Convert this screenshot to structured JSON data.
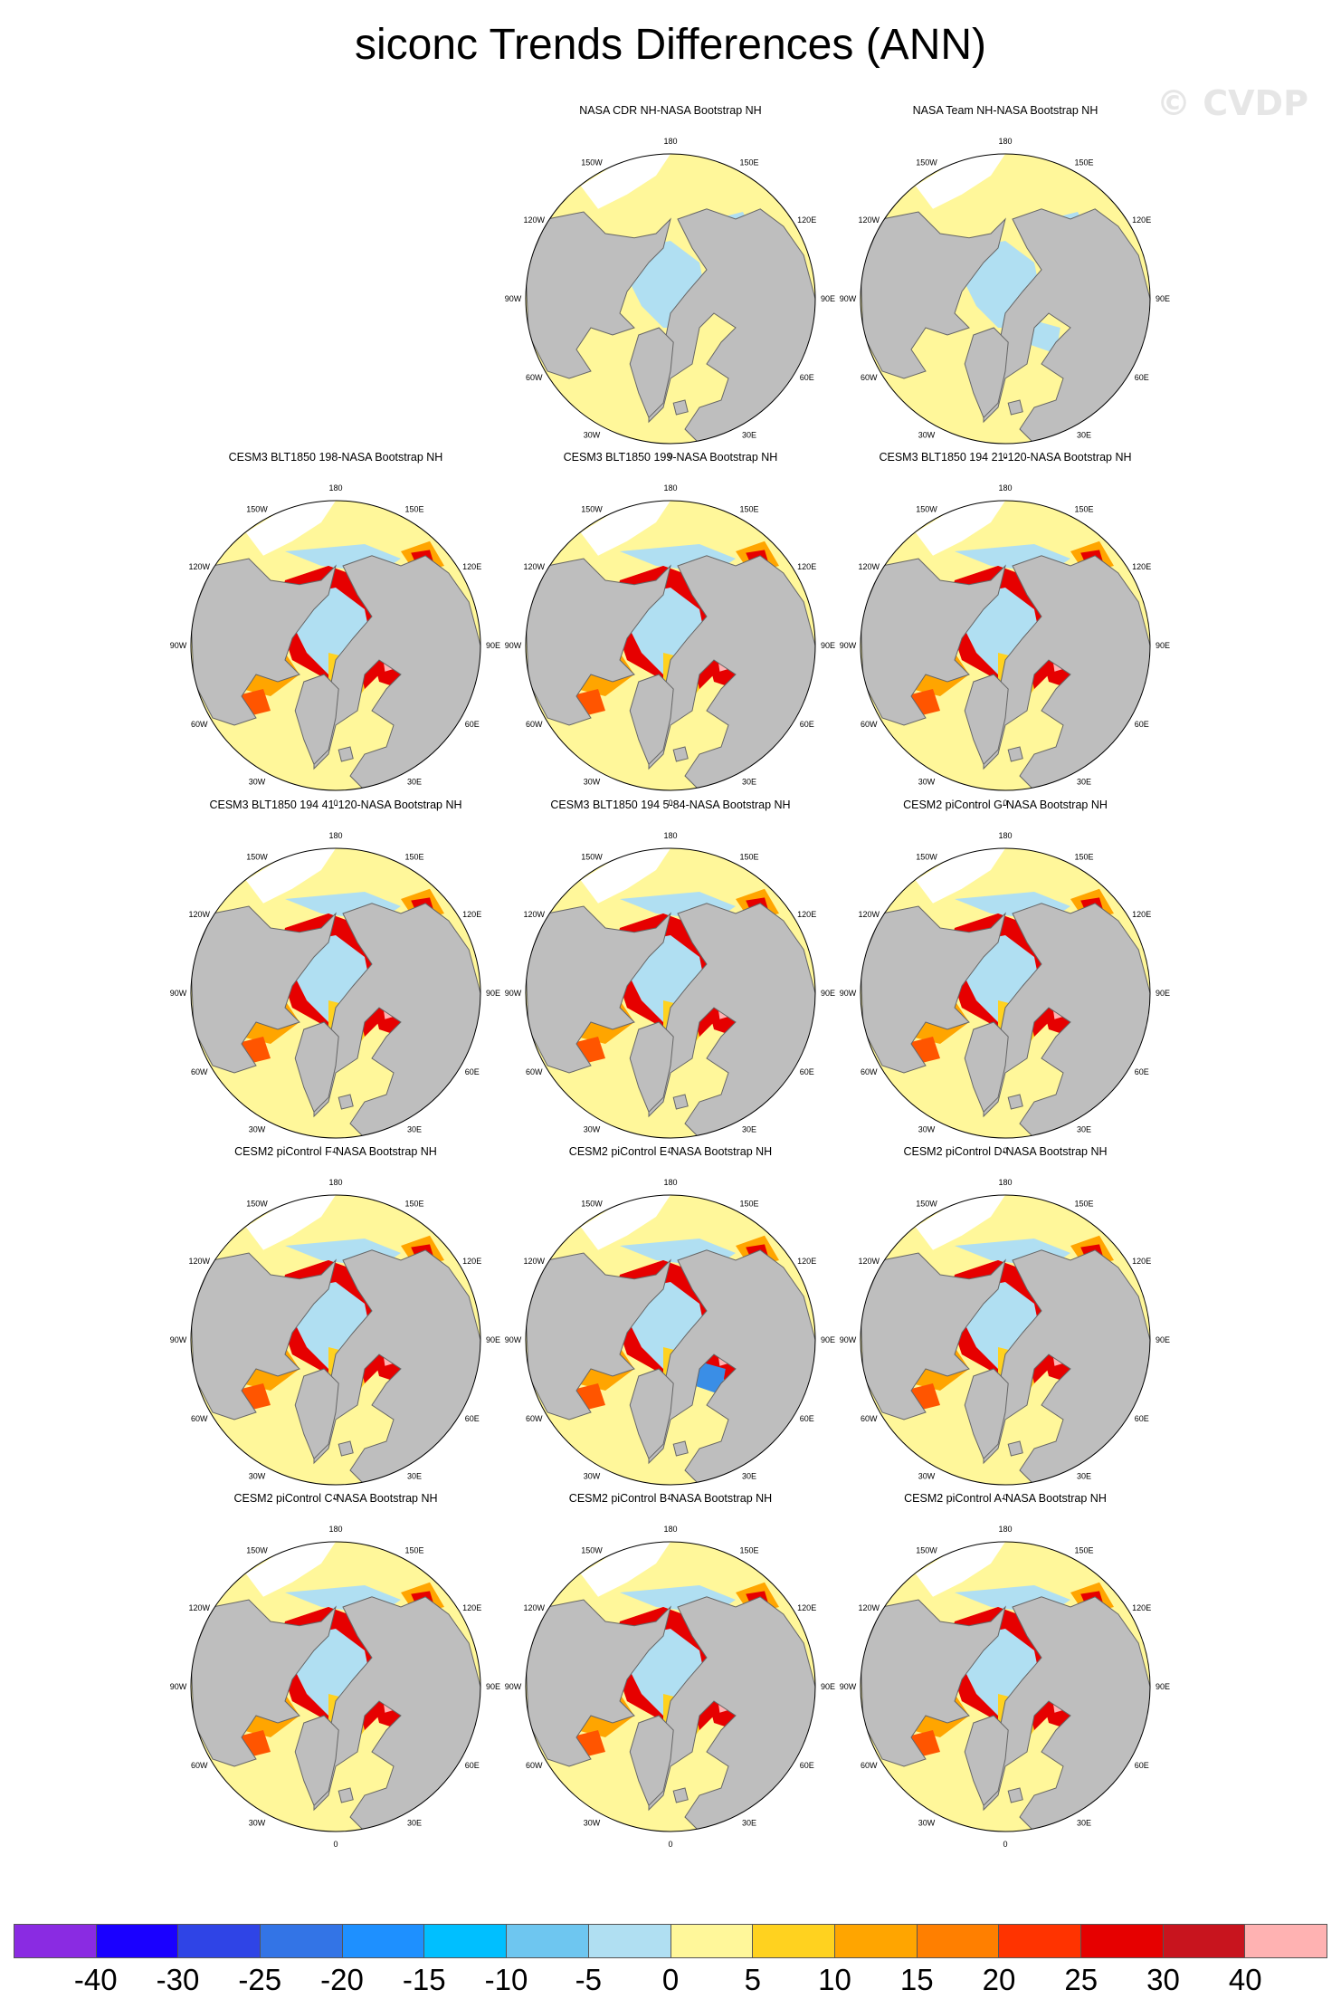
{
  "title": "siconc Trends Differences (ANN)",
  "watermark": "© CVDP",
  "lon_labels": [
    "180",
    "150E",
    "120E",
    "90E",
    "60E",
    "30E",
    "0",
    "30W",
    "60W",
    "90W",
    "120W",
    "150W"
  ],
  "panels": [
    {
      "title": "NASA CDR NH-NASA Bootstrap NH",
      "pattern": "obs1"
    },
    {
      "title": "NASA Team NH-NASA Bootstrap NH",
      "pattern": "obs2"
    },
    {
      "title": "CESM3 BLT1850 198-NASA Bootstrap NH",
      "pattern": "model"
    },
    {
      "title": "CESM3 BLT1850 199-NASA Bootstrap NH",
      "pattern": "model"
    },
    {
      "title": "CESM3 BLT1850 194 21-120-NASA Bootstrap NH",
      "pattern": "model"
    },
    {
      "title": "CESM3 BLT1850 194 41-120-NASA Bootstrap NH",
      "pattern": "model"
    },
    {
      "title": "CESM3 BLT1850 194 5-84-NASA Bootstrap NH",
      "pattern": "model"
    },
    {
      "title": "CESM2 piControl G-NASA Bootstrap NH",
      "pattern": "model"
    },
    {
      "title": "CESM2 piControl F-NASA Bootstrap NH",
      "pattern": "model"
    },
    {
      "title": "CESM2 piControl E-NASA Bootstrap NH",
      "pattern": "model_e"
    },
    {
      "title": "CESM2 piControl D-NASA Bootstrap NH",
      "pattern": "model"
    },
    {
      "title": "CESM2 piControl C-NASA Bootstrap NH",
      "pattern": "model"
    },
    {
      "title": "CESM2 piControl B-NASA Bootstrap NH",
      "pattern": "model"
    },
    {
      "title": "CESM2 piControl A-NASA Bootstrap NH",
      "pattern": "model"
    }
  ],
  "colorbar": {
    "colors": [
      "#8a2be2",
      "#1a00ff",
      "#2f44e6",
      "#3374e6",
      "#1e90ff",
      "#00bfff",
      "#6ec6f0",
      "#b0dff2",
      "#fff79a",
      "#ffd21f",
      "#ffa500",
      "#ff7f00",
      "#ff3300",
      "#e60000",
      "#c8141e",
      "#ffb2b2"
    ],
    "tick_labels": [
      "-40",
      "-30",
      "-25",
      "-20",
      "-15",
      "-10",
      "-5",
      "0",
      "5",
      "10",
      "15",
      "20",
      "25",
      "30",
      "40"
    ]
  },
  "palette": {
    "land": "#bebebe",
    "ocean_neutral": "#fff79a",
    "light_blue": "#b0dff2",
    "blue": "#3a8ee6",
    "orange": "#ffa500",
    "red_orange": "#ff5500",
    "red": "#e60000",
    "pink": "#ffb2b2",
    "yellow_dark": "#ffd21f"
  }
}
